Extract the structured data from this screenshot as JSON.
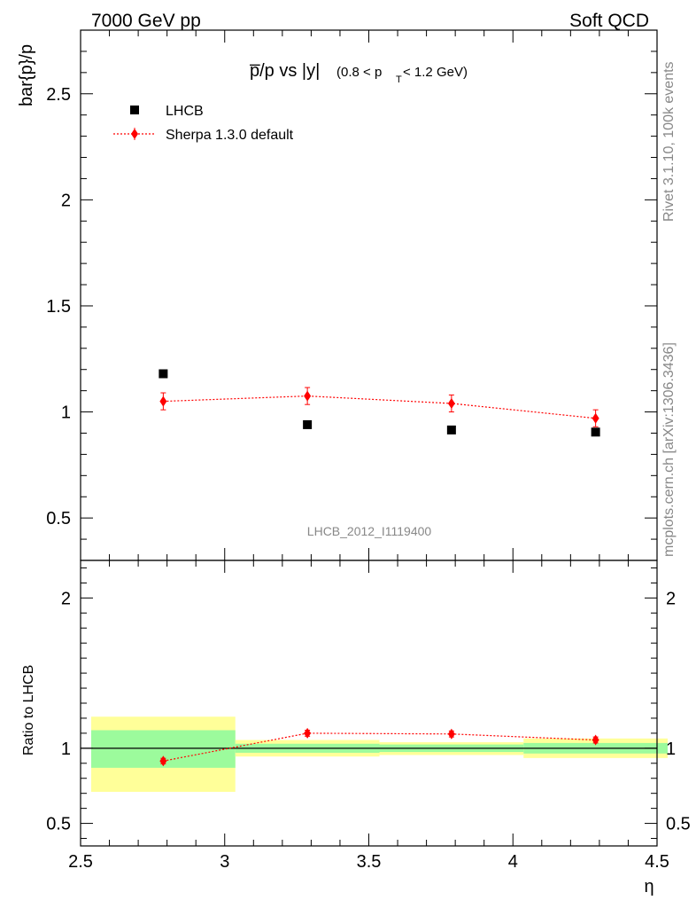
{
  "header": {
    "left": "7000 GeV pp",
    "right": "Soft QCD"
  },
  "side_text": {
    "rivet": "Rivet 3.1.10,  100k events",
    "mcplots": "mcplots.cern.ch [arXiv:1306.3436]"
  },
  "colors": {
    "data": "#000000",
    "mc": "#ff0000",
    "band_inner": "#9cfb9c",
    "band_outer": "#ffff99",
    "watermark": "#888888"
  },
  "chart_data": [
    {
      "type": "scatter",
      "title": "p̅/p vs |y|",
      "title_suffix": "(0.8 < p",
      "title_sub": "T",
      "title_tail": " < 1.2 GeV)",
      "ylabel": "bar{p}/p",
      "xlabel": "η",
      "watermark": "LHCB_2012_I1119400",
      "xlim": [
        2.5,
        4.5
      ],
      "ylim": [
        0.3,
        2.8
      ],
      "x_ticks": [
        "2.5",
        "3",
        "3.5",
        "4",
        "4.5"
      ],
      "y_ticks": [
        "0.5",
        "1",
        "1.5",
        "2",
        "2.5"
      ],
      "legend": {
        "placement": "top-left",
        "entries": [
          "LHCB",
          "Sherpa 1.3.0 default"
        ]
      },
      "series": [
        {
          "name": "LHCB",
          "marker": "square",
          "x": [
            2.75,
            3.25,
            3.75,
            4.25
          ],
          "y": [
            1.18,
            0.94,
            0.915,
            0.905
          ]
        },
        {
          "name": "Sherpa 1.3.0 default",
          "marker": "diamond",
          "line": "dotted",
          "x": [
            2.75,
            3.25,
            3.75,
            4.25
          ],
          "y": [
            1.05,
            1.075,
            1.04,
            0.97
          ],
          "yerr": [
            0.04,
            0.04,
            0.04,
            0.04
          ]
        }
      ]
    },
    {
      "type": "scatter",
      "ylabel": "Ratio to LHCB",
      "xlim": [
        2.5,
        4.5
      ],
      "ylim": [
        0.35,
        2.25
      ],
      "y_ticks": [
        "0.5",
        "1",
        "2"
      ],
      "bands": [
        {
          "x": [
            2.5,
            3.0
          ],
          "inner": [
            0.87,
            1.12
          ],
          "outer": [
            0.71,
            1.21
          ]
        },
        {
          "x": [
            3.0,
            3.5
          ],
          "inner": [
            0.97,
            1.03
          ],
          "outer": [
            0.945,
            1.055
          ]
        },
        {
          "x": [
            3.5,
            4.0
          ],
          "inner": [
            0.975,
            1.025
          ],
          "outer": [
            0.955,
            1.04
          ]
        },
        {
          "x": [
            4.0,
            4.5
          ],
          "inner": [
            0.965,
            1.035
          ],
          "outer": [
            0.935,
            1.065
          ]
        }
      ],
      "series": [
        {
          "name": "Sherpa 1.3.0 default",
          "marker": "diamond",
          "line": "dotted",
          "x": [
            2.75,
            3.25,
            3.75,
            4.25
          ],
          "y": [
            0.915,
            1.1,
            1.095,
            1.055
          ],
          "yerr": [
            0.018,
            0.02,
            0.02,
            0.02
          ]
        }
      ]
    }
  ]
}
